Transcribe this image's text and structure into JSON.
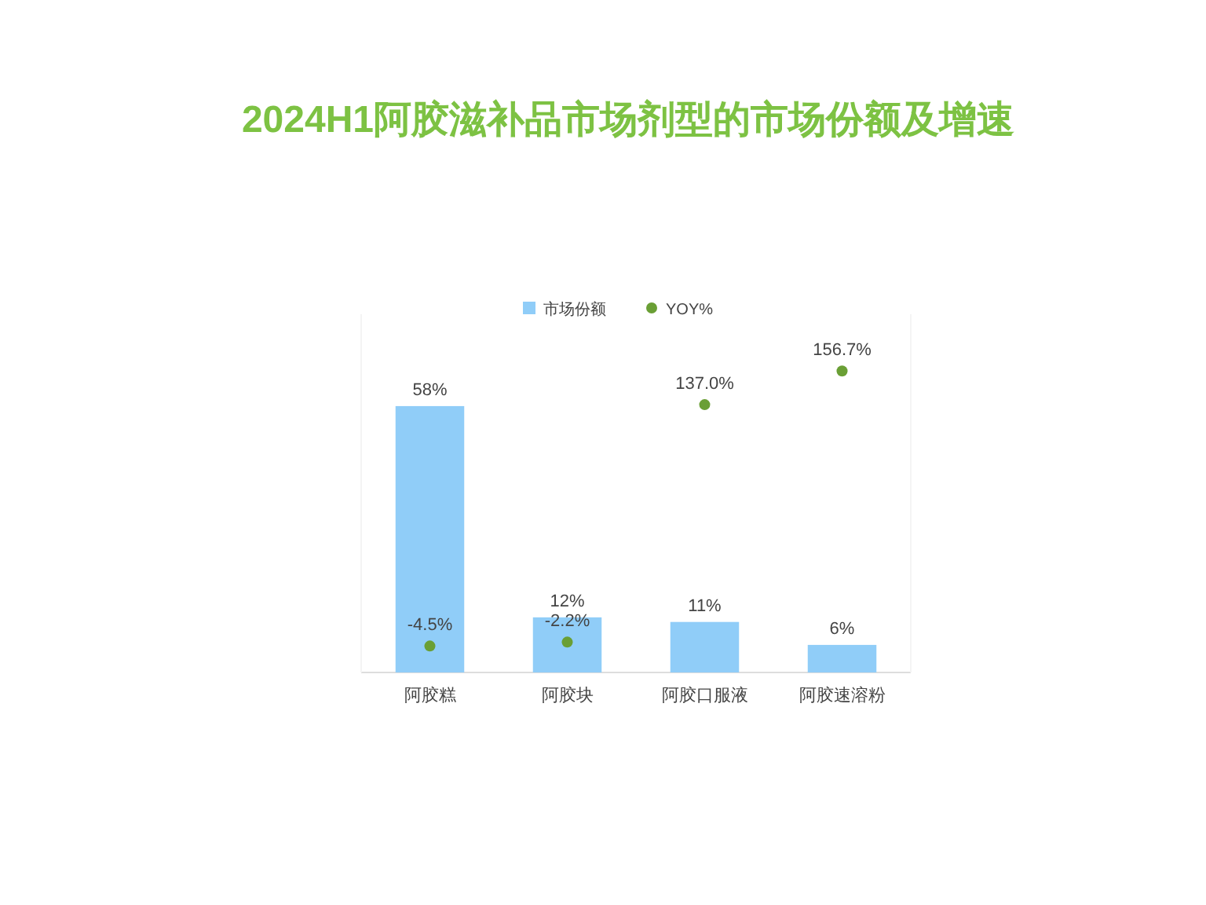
{
  "chart_data": {
    "type": "bar",
    "title": "2024H1阿胶滋补品市场剂型的市场份额及增速",
    "categories": [
      "阿胶糕",
      "阿胶块",
      "阿胶口服液",
      "阿胶速溶粉"
    ],
    "legend": "top",
    "ylim": [
      0,
      78
    ],
    "y2lim": [
      -20,
      190
    ],
    "series": [
      {
        "name": "市场份额",
        "type": "bar",
        "color": "#90cdf8",
        "values": [
          58,
          12,
          11,
          6
        ],
        "value_labels": [
          "58%",
          "12%",
          "11%",
          "6%"
        ]
      },
      {
        "name": "YOY%",
        "type": "scatter",
        "axis": "y2",
        "color": "#6a9f35",
        "values": [
          -4.5,
          -2.2,
          137.0,
          156.7
        ],
        "value_labels": [
          "-4.5%",
          "-2.2%",
          "137.0%",
          "156.7%"
        ]
      }
    ]
  }
}
